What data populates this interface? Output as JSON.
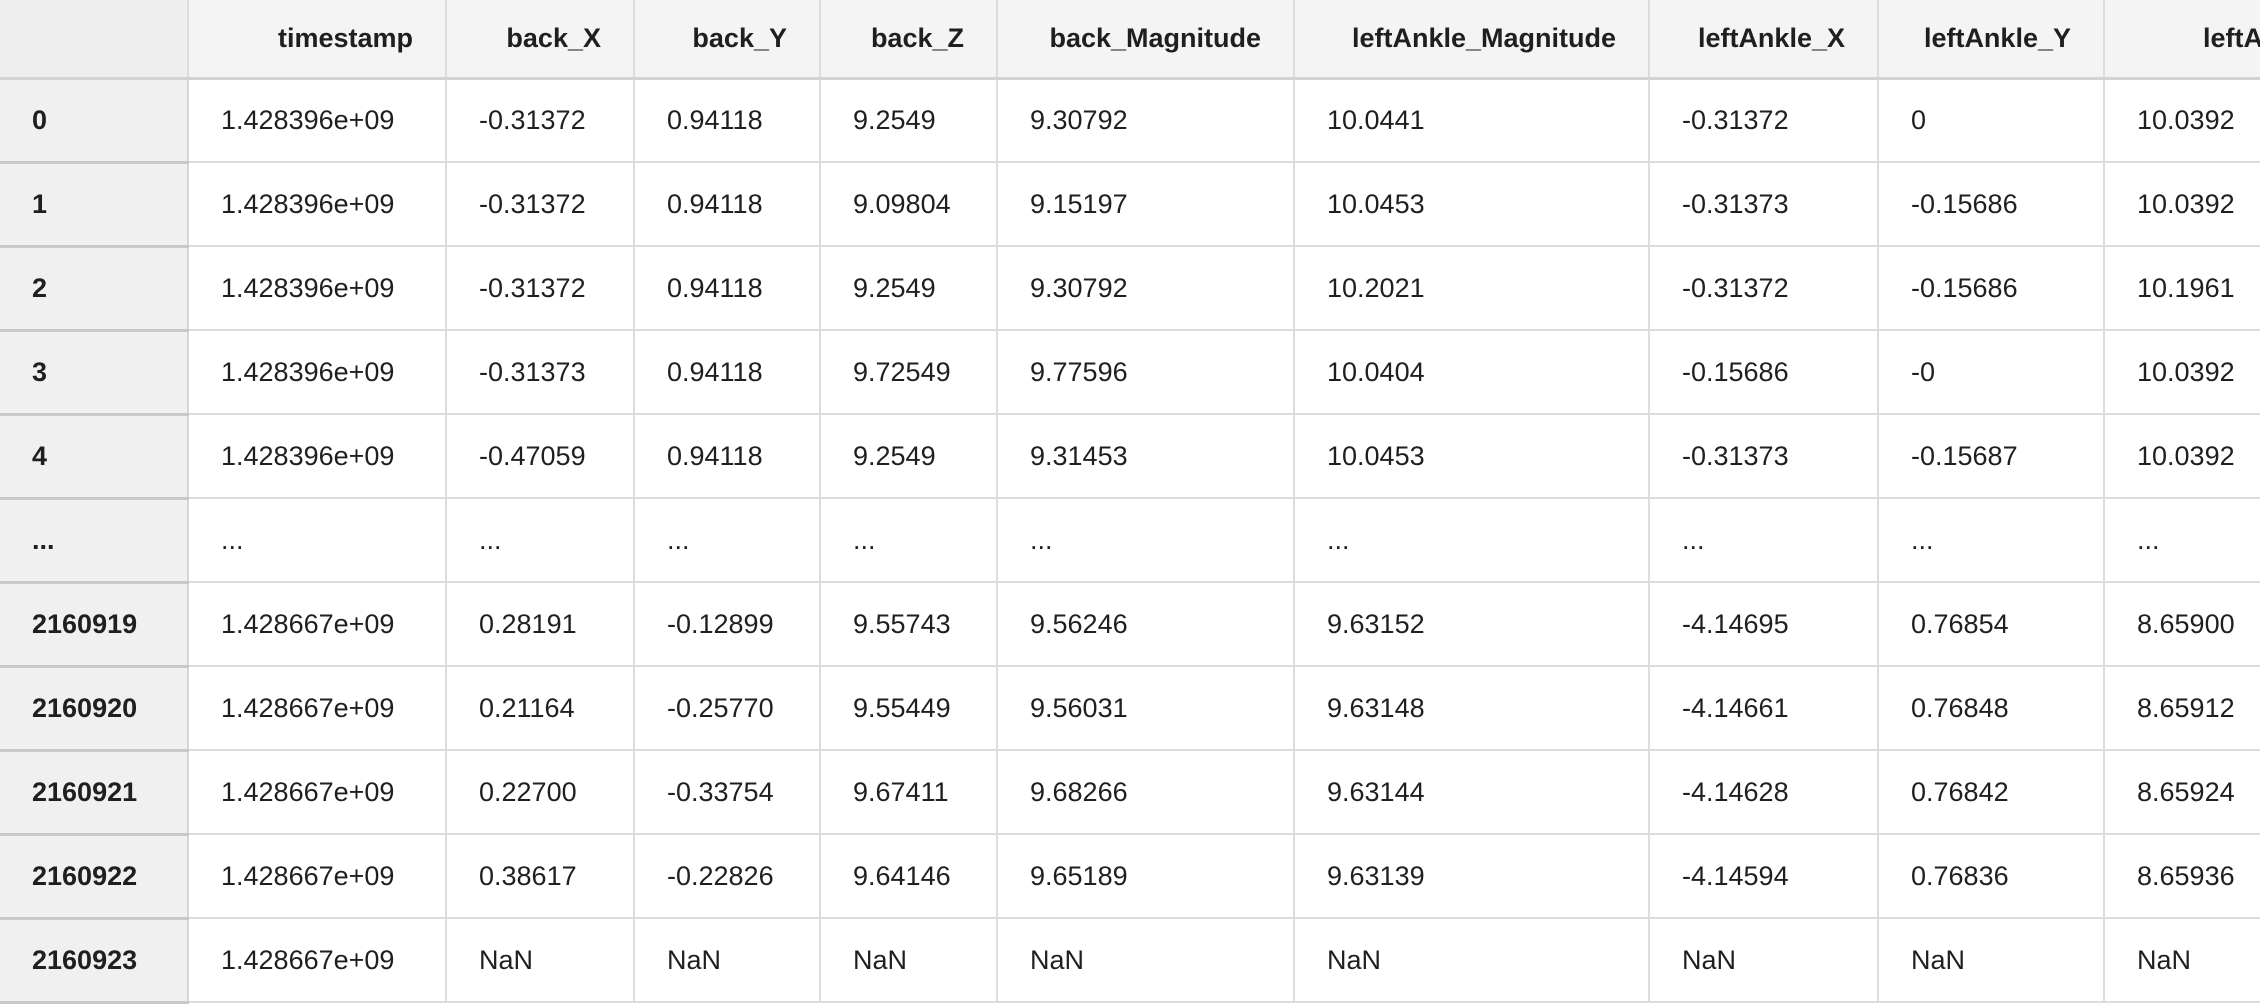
{
  "table": {
    "columns": [
      "",
      "timestamp",
      "back_X",
      "back_Y",
      "back_Z",
      "back_Magnitude",
      "leftAnkle_Magnitude",
      "leftAnkle_X",
      "leftAnkle_Y",
      "leftAnkle"
    ],
    "rows": [
      {
        "index": "0",
        "cells": [
          "1.428396e+09",
          "-0.31372",
          "0.94118",
          "9.2549",
          "9.30792",
          "10.0441",
          "-0.31372",
          "0",
          "10.0392"
        ]
      },
      {
        "index": "1",
        "cells": [
          "1.428396e+09",
          "-0.31372",
          "0.94118",
          "9.09804",
          "9.15197",
          "10.0453",
          "-0.31373",
          "-0.15686",
          "10.0392"
        ]
      },
      {
        "index": "2",
        "cells": [
          "1.428396e+09",
          "-0.31372",
          "0.94118",
          "9.2549",
          "9.30792",
          "10.2021",
          "-0.31372",
          "-0.15686",
          "10.1961"
        ]
      },
      {
        "index": "3",
        "cells": [
          "1.428396e+09",
          "-0.31373",
          "0.94118",
          "9.72549",
          "9.77596",
          "10.0404",
          "-0.15686",
          "-0",
          "10.0392"
        ]
      },
      {
        "index": "4",
        "cells": [
          "1.428396e+09",
          "-0.47059",
          "0.94118",
          "9.2549",
          "9.31453",
          "10.0453",
          "-0.31373",
          "-0.15687",
          "10.0392"
        ]
      },
      {
        "index": "...",
        "cells": [
          "...",
          "...",
          "...",
          "...",
          "...",
          "...",
          "...",
          "...",
          "..."
        ]
      },
      {
        "index": "2160919",
        "cells": [
          "1.428667e+09",
          "0.28191",
          "-0.12899",
          "9.55743",
          "9.56246",
          "9.63152",
          "-4.14695",
          "0.76854",
          "8.65900"
        ]
      },
      {
        "index": "2160920",
        "cells": [
          "1.428667e+09",
          "0.21164",
          "-0.25770",
          "9.55449",
          "9.56031",
          "9.63148",
          "-4.14661",
          "0.76848",
          "8.65912"
        ]
      },
      {
        "index": "2160921",
        "cells": [
          "1.428667e+09",
          "0.22700",
          "-0.33754",
          "9.67411",
          "9.68266",
          "9.63144",
          "-4.14628",
          "0.76842",
          "8.65924"
        ]
      },
      {
        "index": "2160922",
        "cells": [
          "1.428667e+09",
          "0.38617",
          "-0.22826",
          "9.64146",
          "9.65189",
          "9.63139",
          "-4.14594",
          "0.76836",
          "8.65936"
        ]
      },
      {
        "index": "2160923",
        "cells": [
          "1.428667e+09",
          "NaN",
          "NaN",
          "NaN",
          "NaN",
          "NaN",
          "NaN",
          "NaN",
          "NaN"
        ]
      }
    ]
  }
}
